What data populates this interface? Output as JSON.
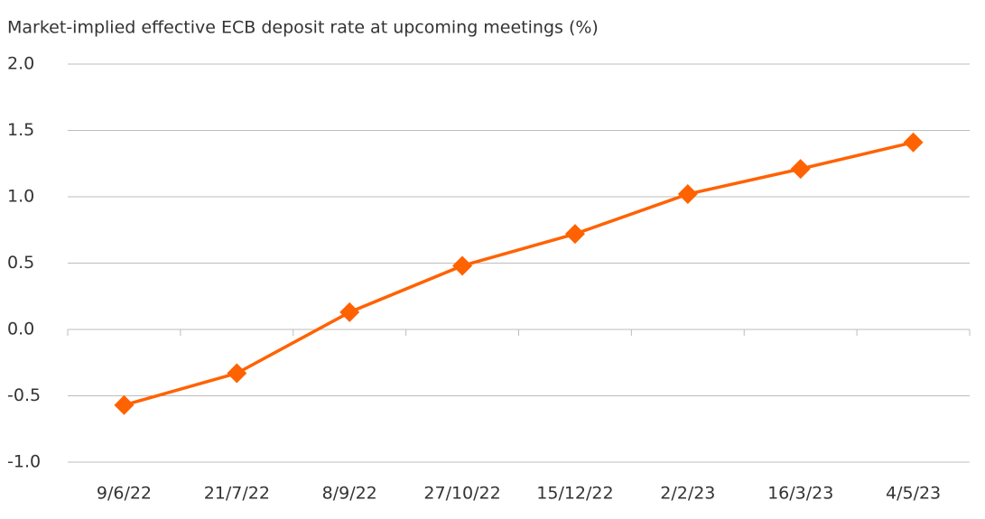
{
  "chart_data": {
    "type": "line",
    "title": "Market-implied effective ECB deposit rate at upcoming meetings (%)",
    "categories": [
      "9/6/22",
      "21/7/22",
      "8/9/22",
      "27/10/22",
      "15/12/22",
      "2/2/23",
      "16/3/23",
      "4/5/23"
    ],
    "series": [
      {
        "name": "Market-implied effective ECB deposit rate",
        "color": "#ff6200",
        "values": [
          -0.57,
          -0.33,
          0.13,
          0.48,
          0.72,
          1.02,
          1.21,
          1.41
        ]
      }
    ],
    "ylim": [
      -1.0,
      2.0
    ],
    "yticks": [
      {
        "value": -1.0,
        "label": "-1.0"
      },
      -0.5,
      {
        "value": 0.0,
        "label": "0.0"
      },
      0.5,
      {
        "value": 1.0,
        "label": "1.0"
      },
      1.5,
      {
        "value": 2.0,
        "label": "2.0"
      }
    ],
    "grid": true
  }
}
